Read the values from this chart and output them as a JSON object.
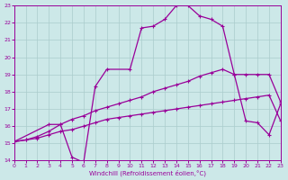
{
  "xlabel": "Windchill (Refroidissement éolien,°C)",
  "bg_color": "#cce8e8",
  "line_color": "#990099",
  "grid_color": "#aacccc",
  "xlim": [
    0,
    23
  ],
  "ylim": [
    14,
    23
  ],
  "xticks": [
    0,
    1,
    2,
    3,
    4,
    5,
    6,
    7,
    8,
    9,
    10,
    11,
    12,
    13,
    14,
    15,
    16,
    17,
    18,
    19,
    20,
    21,
    22,
    23
  ],
  "yticks": [
    14,
    15,
    16,
    17,
    18,
    19,
    20,
    21,
    22,
    23
  ],
  "series_main_x": [
    0,
    3,
    4,
    5,
    6,
    7,
    8,
    10,
    11,
    12,
    13,
    14,
    15,
    16,
    17,
    18,
    19,
    20,
    21,
    22,
    23
  ],
  "series_main_y": [
    15.1,
    16.1,
    16.1,
    14.2,
    13.9,
    18.3,
    19.3,
    19.3,
    21.7,
    21.8,
    22.2,
    23.0,
    23.0,
    22.4,
    22.2,
    21.8,
    19.0,
    16.3,
    16.2,
    15.5,
    17.3
  ],
  "series_upper_x": [
    0,
    1,
    2,
    3,
    4,
    5,
    6,
    7,
    8,
    9,
    10,
    11,
    12,
    13,
    14,
    15,
    16,
    17,
    18,
    19,
    20,
    21,
    22,
    23
  ],
  "series_upper_y": [
    15.1,
    15.2,
    15.4,
    15.7,
    16.1,
    16.4,
    16.6,
    16.9,
    17.1,
    17.3,
    17.5,
    17.7,
    18.0,
    18.2,
    18.4,
    18.6,
    18.9,
    19.1,
    19.3,
    19.0,
    19.0,
    19.0,
    19.0,
    17.4
  ],
  "series_lower_x": [
    0,
    1,
    2,
    3,
    4,
    5,
    6,
    7,
    8,
    9,
    10,
    11,
    12,
    13,
    14,
    15,
    16,
    17,
    18,
    19,
    20,
    21,
    22,
    23
  ],
  "series_lower_y": [
    15.1,
    15.2,
    15.3,
    15.5,
    15.7,
    15.8,
    16.0,
    16.2,
    16.4,
    16.5,
    16.6,
    16.7,
    16.8,
    16.9,
    17.0,
    17.1,
    17.2,
    17.3,
    17.4,
    17.5,
    17.6,
    17.7,
    17.8,
    16.3
  ]
}
